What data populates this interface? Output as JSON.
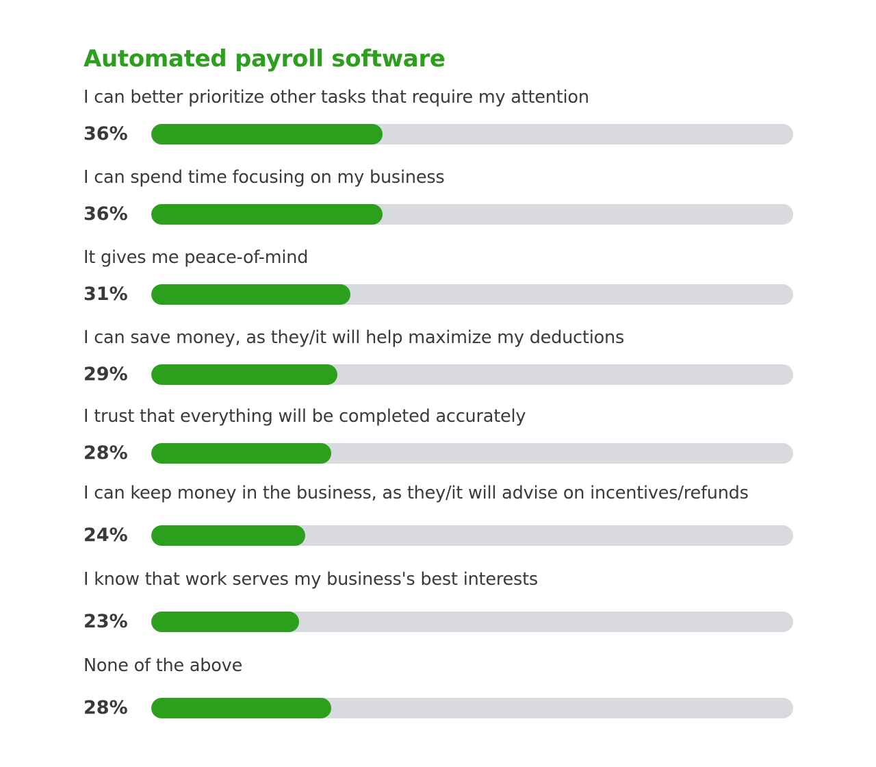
{
  "colors": {
    "accent": "#2ca01c",
    "track": "#d9dae0",
    "text": "#393a3d"
  },
  "chart_data": {
    "type": "bar",
    "orientation": "horizontal",
    "title": "Automated payroll software",
    "xlim": [
      0,
      100
    ],
    "categories": [
      "I can better prioritize other tasks that require my attention",
      "I can spend time focusing on my business",
      "It gives me peace-of-mind",
      "I can save money, as they/it will help maximize my deductions",
      "I trust that everything will be completed accurately",
      "I can keep money in the business, as they/it will advise on incentives/refunds",
      "I know that work serves my business's best interests",
      "None of the above"
    ],
    "values": [
      36,
      36,
      31,
      29,
      28,
      24,
      23,
      28
    ],
    "value_labels": [
      "36%",
      "36%",
      "31%",
      "29%",
      "28%",
      "24%",
      "23%",
      "28%"
    ],
    "grid": false,
    "legend": "none"
  }
}
